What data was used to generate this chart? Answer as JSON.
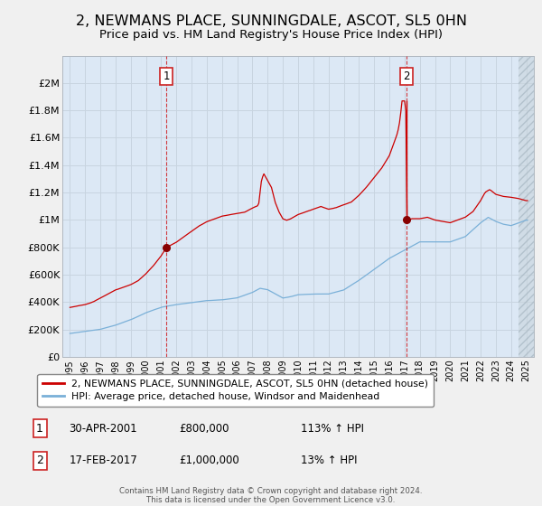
{
  "title": "2, NEWMANS PLACE, SUNNINGDALE, ASCOT, SL5 0HN",
  "subtitle": "Price paid vs. HM Land Registry's House Price Index (HPI)",
  "title_fontsize": 11.5,
  "subtitle_fontsize": 9.5,
  "background_color": "#f0f0f0",
  "plot_bg_color": "#dce8f5",
  "grid_color": "#c8d4e0",
  "red_line_color": "#cc0000",
  "blue_line_color": "#7ab0d8",
  "marker_color": "#880000",
  "xlim": [
    1994.5,
    2025.5
  ],
  "ylim": [
    0,
    2200000
  ],
  "yticks": [
    0,
    200000,
    400000,
    600000,
    800000,
    1000000,
    1200000,
    1400000,
    1600000,
    1800000,
    2000000
  ],
  "ytick_labels": [
    "£0",
    "£200K",
    "£400K",
    "£600K",
    "£800K",
    "£1M",
    "£1.2M",
    "£1.4M",
    "£1.6M",
    "£1.8M",
    "£2M"
  ],
  "xticks": [
    1995,
    1996,
    1997,
    1998,
    1999,
    2000,
    2001,
    2002,
    2003,
    2004,
    2005,
    2006,
    2007,
    2008,
    2009,
    2010,
    2011,
    2012,
    2013,
    2014,
    2015,
    2016,
    2017,
    2018,
    2019,
    2020,
    2021,
    2022,
    2023,
    2024,
    2025
  ],
  "sale1_date": 2001.33,
  "sale1_price": 800000,
  "sale2_date": 2017.12,
  "sale2_price": 1000000,
  "sale2_peak": 1870000,
  "legend_red": "2, NEWMANS PLACE, SUNNINGDALE, ASCOT, SL5 0HN (detached house)",
  "legend_blue": "HPI: Average price, detached house, Windsor and Maidenhead",
  "table_rows": [
    {
      "num": "1",
      "date": "30-APR-2001",
      "price": "£800,000",
      "hpi": "113% ↑ HPI"
    },
    {
      "num": "2",
      "date": "17-FEB-2017",
      "price": "£1,000,000",
      "hpi": "13% ↑ HPI"
    }
  ],
  "footer1": "Contains HM Land Registry data © Crown copyright and database right 2024.",
  "footer2": "This data is licensed under the Open Government Licence v3.0.",
  "right_hatch_start": 2024.5
}
